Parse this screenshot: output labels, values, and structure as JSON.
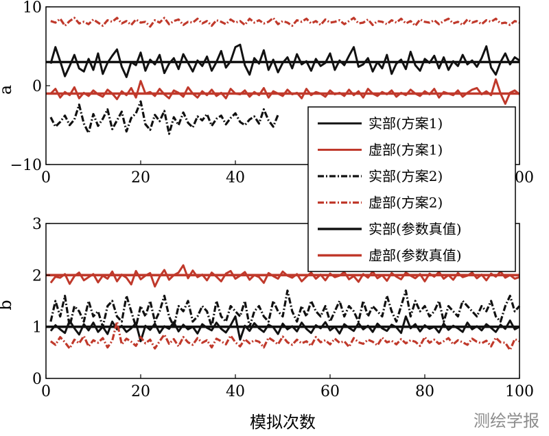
{
  "chart_data": [
    {
      "type": "line",
      "ylabel": "a",
      "xlabel": "",
      "xlim": [
        0,
        100
      ],
      "ylim": [
        -10,
        10
      ],
      "xticks": [
        "0",
        "20",
        "40",
        "60",
        "80",
        "100"
      ],
      "yticks": [
        "−10",
        "0",
        "10"
      ],
      "series": [
        {
          "name": "实部(参数真值)",
          "color": "#111111",
          "style": "solid-thick",
          "values": [
            3.0,
            3.0
          ]
        },
        {
          "name": "虚部(参数真值)",
          "color": "#c0392b",
          "style": "solid-thick",
          "values": [
            -1.0,
            -1.0
          ]
        },
        {
          "name": "虚部(方案2)",
          "color": "#c0392b",
          "style": "dashdot",
          "values": [
            8.2,
            8.0,
            8.5,
            7.6,
            8.2,
            8.6,
            7.9,
            8.1,
            7.8,
            8.4,
            8.0,
            7.6,
            8.3,
            8.1,
            8.6,
            7.9,
            8.2,
            7.7,
            8.4,
            8.0,
            8.1,
            7.5,
            8.3,
            8.0,
            8.6,
            7.8,
            8.2,
            8.4,
            7.7,
            8.1,
            8.0,
            8.5,
            7.9,
            8.2,
            7.6,
            8.3,
            8.1,
            7.8,
            8.4,
            8.0,
            8.2,
            7.7,
            8.5,
            8.0,
            8.3,
            7.9,
            8.1,
            8.6,
            7.8,
            8.2,
            8.0,
            7.6,
            8.3,
            8.1,
            8.5,
            7.9,
            8.2,
            7.7,
            8.4,
            8.0,
            8.1,
            8.3,
            7.8,
            8.2,
            8.6,
            7.9,
            8.0,
            8.4,
            7.7,
            8.2,
            8.1,
            7.8,
            8.3,
            8.0,
            8.5,
            7.9,
            8.2,
            7.6,
            8.4,
            8.1,
            8.0,
            8.3,
            7.8,
            8.2,
            8.5,
            7.9,
            8.1,
            7.7,
            8.4,
            8.0,
            8.2,
            7.8,
            8.3,
            8.1,
            8.5,
            7.9,
            8.0,
            7.7,
            8.2,
            8.0
          ]
        },
        {
          "name": "实部(方案1)",
          "color": "#111111",
          "style": "solid",
          "values": [
            2.8,
            4.9,
            3.1,
            1.2,
            2.5,
            3.9,
            2.2,
            1.8,
            3.4,
            2.0,
            4.1,
            1.5,
            2.9,
            3.8,
            4.6,
            2.4,
            1.1,
            3.0,
            2.6,
            4.2,
            1.9,
            3.3,
            2.7,
            3.9,
            1.6,
            2.8,
            3.5,
            2.1,
            4.0,
            2.9,
            1.8,
            3.2,
            2.5,
            3.7,
            1.9,
            3.0,
            4.4,
            2.3,
            3.1,
            4.9,
            5.2,
            2.6,
            1.4,
            3.5,
            2.8,
            4.5,
            2.0,
            3.3,
            1.7,
            2.9,
            3.6,
            2.2,
            4.0,
            2.7,
            3.1,
            1.9,
            3.4,
            2.5,
            2.9,
            4.1,
            2.0,
            3.2,
            2.6,
            3.8,
            4.9,
            2.4,
            2.7,
            3.5,
            1.8,
            3.0,
            2.2,
            3.9,
            1.5,
            2.8,
            3.3,
            2.1,
            4.3,
            2.6,
            1.9,
            3.4,
            2.9,
            3.8,
            2.2,
            3.6,
            2.0,
            3.1,
            2.5,
            3.9,
            2.7,
            3.2,
            2.4,
            3.5,
            5.0,
            2.3,
            1.4,
            3.0,
            4.1,
            2.7,
            3.6,
            3.2
          ]
        },
        {
          "name": "虚部(方案1)",
          "color": "#c0392b",
          "style": "solid",
          "values": [
            -1.0,
            -0.4,
            -1.5,
            -0.8,
            -1.2,
            -0.2,
            -1.6,
            -0.9,
            -1.3,
            -0.6,
            -1.1,
            -1.4,
            -0.5,
            -1.0,
            -1.7,
            -0.7,
            -1.2,
            -0.3,
            -1.5,
            0.6,
            -1.0,
            -0.8,
            -1.3,
            -0.4,
            -1.1,
            -1.6,
            -0.6,
            -0.9,
            -1.4,
            -0.2,
            -1.0,
            -1.5,
            -0.7,
            -1.2,
            -0.5,
            -1.3,
            -0.9,
            -1.6,
            -0.4,
            -1.0,
            -1.1,
            -0.6,
            -1.4,
            -0.8,
            -1.2,
            -0.3,
            -1.5,
            -0.7,
            -1.0,
            -1.3,
            -0.5,
            -1.1,
            -0.9,
            -1.6,
            -0.4,
            -1.2,
            -0.8,
            -1.0,
            -1.4,
            -0.6,
            -1.1,
            -0.9,
            -1.3,
            -0.5,
            -1.2,
            -0.7,
            -1.5,
            -0.4,
            -1.0,
            -1.3,
            -0.8,
            -1.1,
            -0.6,
            -1.4,
            -0.9,
            -1.2,
            -0.5,
            -1.0,
            -1.3,
            -0.7,
            -1.1,
            -0.4,
            -1.5,
            -0.8,
            -1.0,
            -1.2,
            -0.6,
            -1.4,
            -0.9,
            -0.5,
            -0.3,
            -1.1,
            -0.7,
            -1.2,
            0.8,
            -1.0,
            -2.3,
            -0.9,
            -0.6,
            -1.1
          ]
        },
        {
          "name": "实部(方案2)",
          "color": "#111111",
          "style": "dashdot",
          "values": [
            -4.0,
            -5.2,
            -4.6,
            -3.8,
            -5.0,
            -4.3,
            -2.4,
            -4.8,
            -6.0,
            -3.6,
            -5.1,
            -4.2,
            -3.0,
            -5.5,
            -4.4,
            -3.3,
            -5.8,
            -4.1,
            -3.5,
            -2.0,
            -4.9,
            -5.6,
            -3.7,
            -4.5,
            -3.2,
            -6.1,
            -4.0,
            -5.0,
            -3.4,
            -4.7,
            -5.3,
            -3.9,
            -4.4,
            -3.6,
            -5.1,
            -4.2,
            -3.8,
            -4.9,
            -4.1,
            -3.5,
            -4.6,
            -5.0,
            -4.3,
            -3.9,
            -4.8,
            -3.0,
            -4.4,
            -5.2,
            -3.7
          ]
        }
      ]
    },
    {
      "type": "line",
      "ylabel": "b",
      "xlabel": "模拟次数",
      "xlim": [
        0,
        100
      ],
      "ylim": [
        0,
        3
      ],
      "xticks": [
        "0",
        "20",
        "40",
        "60",
        "80",
        "100"
      ],
      "yticks": [
        "0",
        "1",
        "2",
        "3"
      ],
      "series": [
        {
          "name": "实部(参数真值)",
          "color": "#111111",
          "style": "solid-thick",
          "values": [
            1.0,
            1.0
          ]
        },
        {
          "name": "虚部(参数真值)",
          "color": "#c0392b",
          "style": "solid-thick",
          "values": [
            2.0,
            2.0
          ]
        },
        {
          "name": "虚部(方案1)",
          "color": "#c0392b",
          "style": "solid",
          "values": [
            1.85,
            1.97,
            1.95,
            2.02,
            1.83,
            1.98,
            2.05,
            1.9,
            1.96,
            2.02,
            1.86,
            1.99,
            1.93,
            2.07,
            1.88,
            2.01,
            1.95,
            1.82,
            2.08,
            1.92,
            1.99,
            2.04,
            1.78,
            1.97,
            2.1,
            1.91,
            2.0,
            2.05,
            2.19,
            1.94,
            2.09,
            1.96,
            2.01,
            1.9,
            2.05,
            1.97,
            1.88,
            2.03,
            2.08,
            1.93,
            1.99,
            2.06,
            1.91,
            2.0,
            1.96,
            1.85,
            2.04,
            1.98,
            1.93,
            2.07,
            1.99,
            1.95,
            2.02,
            1.88,
            1.97,
            2.05,
            1.93,
            2.01,
            1.9,
            2.03,
            1.96,
            1.99,
            2.06,
            1.92,
            1.98,
            1.87,
            2.02,
            1.95,
            2.07,
            1.94,
            2.0,
            1.89,
            2.04,
            1.97,
            1.92,
            2.05,
            1.99,
            1.94,
            2.02,
            1.88,
            2.03,
            1.97,
            2.06,
            1.93,
            2.0,
            1.91,
            2.04,
            1.96,
            1.99,
            2.05,
            1.94,
            2.01,
            1.9,
            2.03,
            1.97,
            2.07,
            1.95,
            2.0,
            1.93,
            1.96
          ]
        },
        {
          "name": "实部(方案1)",
          "color": "#111111",
          "style": "solid",
          "values": [
            0.92,
            1.03,
            0.95,
            0.88,
            1.12,
            0.97,
            0.85,
            1.05,
            0.93,
            1.08,
            0.9,
            1.0,
            0.86,
            1.1,
            0.95,
            1.02,
            0.9,
            0.97,
            1.07,
            0.72,
            1.02,
            0.94,
            1.06,
            0.88,
            1.01,
            0.96,
            1.09,
            0.91,
            1.04,
            0.95,
            1.0,
            0.87,
            1.05,
            0.98,
            0.93,
            1.08,
            0.96,
            0.89,
            1.03,
            1.2,
            0.75,
            1.02,
            0.92,
            1.07,
            0.97,
            0.9,
            1.04,
            0.99,
            0.86,
            1.06,
            0.95,
            1.01,
            0.91,
            1.08,
            0.96,
            0.88,
            1.03,
            0.97,
            1.09,
            0.93,
            1.0,
            0.87,
            1.05,
            0.98,
            0.92,
            1.07,
            0.95,
            1.02,
            0.9,
            1.06,
            0.97,
            0.92,
            1.04,
            0.99,
            0.88,
            1.2,
            0.97,
            1.05,
            0.91,
            1.03,
            0.96,
            1.0,
            0.89,
            1.06,
            0.94,
            1.02,
            0.97,
            0.9,
            1.08,
            0.95,
            1.01,
            0.93,
            1.05,
            0.98,
            0.9,
            1.04,
            0.96,
            1.12,
            0.95,
            1.0
          ]
        },
        {
          "name": "实部(方案2)",
          "color": "#111111",
          "style": "dashdot",
          "values": [
            1.1,
            1.5,
            1.2,
            1.6,
            1.0,
            1.4,
            1.3,
            1.1,
            1.5,
            1.2,
            1.3,
            1.0,
            1.4,
            1.5,
            1.2,
            1.1,
            1.6,
            1.3,
            1.0,
            1.4,
            1.2,
            1.5,
            1.1,
            1.3,
            1.6,
            1.2,
            1.0,
            1.4,
            1.3,
            1.5,
            1.1,
            1.2,
            1.4,
            1.3,
            1.0,
            1.5,
            1.2,
            1.1,
            1.4,
            1.3,
            1.2,
            1.5,
            1.0,
            1.3,
            1.4,
            1.2,
            1.1,
            1.5,
            1.3,
            1.2,
            1.7,
            1.3,
            1.1,
            1.4,
            1.2,
            1.5,
            1.3,
            1.2,
            1.4,
            1.1,
            1.3,
            1.5,
            1.2,
            1.4,
            1.3,
            1.1,
            1.5,
            1.2,
            1.4,
            1.3,
            1.2,
            1.6,
            1.3,
            1.1,
            1.4,
            1.7,
            1.2,
            1.5,
            1.3,
            1.4,
            1.2,
            1.3,
            1.5,
            1.1,
            1.4,
            1.3,
            1.2,
            1.5,
            1.4,
            1.3,
            1.2,
            1.4,
            1.3,
            1.5,
            1.2,
            1.1,
            1.4,
            1.6,
            1.3,
            1.4
          ]
        },
        {
          "name": "虚部(方案2)",
          "color": "#c0392b",
          "style": "dashdot",
          "values": [
            0.72,
            0.65,
            0.8,
            0.7,
            0.58,
            0.75,
            0.68,
            0.82,
            0.62,
            0.74,
            0.69,
            0.78,
            0.6,
            0.73,
            1.1,
            0.66,
            0.77,
            0.71,
            0.63,
            0.8,
            0.68,
            0.75,
            0.58,
            0.72,
            0.85,
            0.67,
            0.76,
            0.62,
            0.8,
            0.7,
            0.65,
            0.78,
            0.69,
            0.74,
            0.6,
            0.77,
            0.72,
            0.66,
            0.83,
            0.7,
            0.62,
            0.76,
            0.68,
            0.74,
            0.71,
            0.6,
            0.79,
            0.73,
            0.66,
            0.81,
            0.7,
            0.65,
            0.75,
            0.68,
            0.72,
            0.63,
            0.8,
            0.7,
            0.74,
            0.66,
            0.77,
            0.69,
            0.72,
            0.61,
            0.78,
            0.7,
            0.67,
            0.75,
            0.71,
            0.64,
            0.79,
            0.7,
            0.73,
            0.66,
            0.76,
            0.68,
            0.74,
            0.71,
            0.63,
            0.8,
            0.69,
            0.75,
            0.67,
            0.72,
            0.78,
            0.66,
            0.74,
            0.7,
            0.65,
            0.77,
            0.71,
            0.68,
            0.73,
            0.62,
            0.79,
            0.7,
            0.69,
            0.55,
            0.76,
            0.72
          ]
        }
      ]
    }
  ],
  "legend": {
    "items": [
      {
        "label": "实部(方案1)",
        "color": "#111111",
        "style": "solid"
      },
      {
        "label": "虚部(方案1)",
        "color": "#c0392b",
        "style": "solid"
      },
      {
        "label": "实部(方案2)",
        "color": "#111111",
        "style": "dashdot"
      },
      {
        "label": "虚部(方案2)",
        "color": "#c0392b",
        "style": "dashdot"
      },
      {
        "label": "实部(参数真值)",
        "color": "#111111",
        "style": "solid-thick"
      },
      {
        "label": "虚部(参数真值)",
        "color": "#c0392b",
        "style": "solid-thick"
      }
    ]
  },
  "watermark": "测绘学报"
}
